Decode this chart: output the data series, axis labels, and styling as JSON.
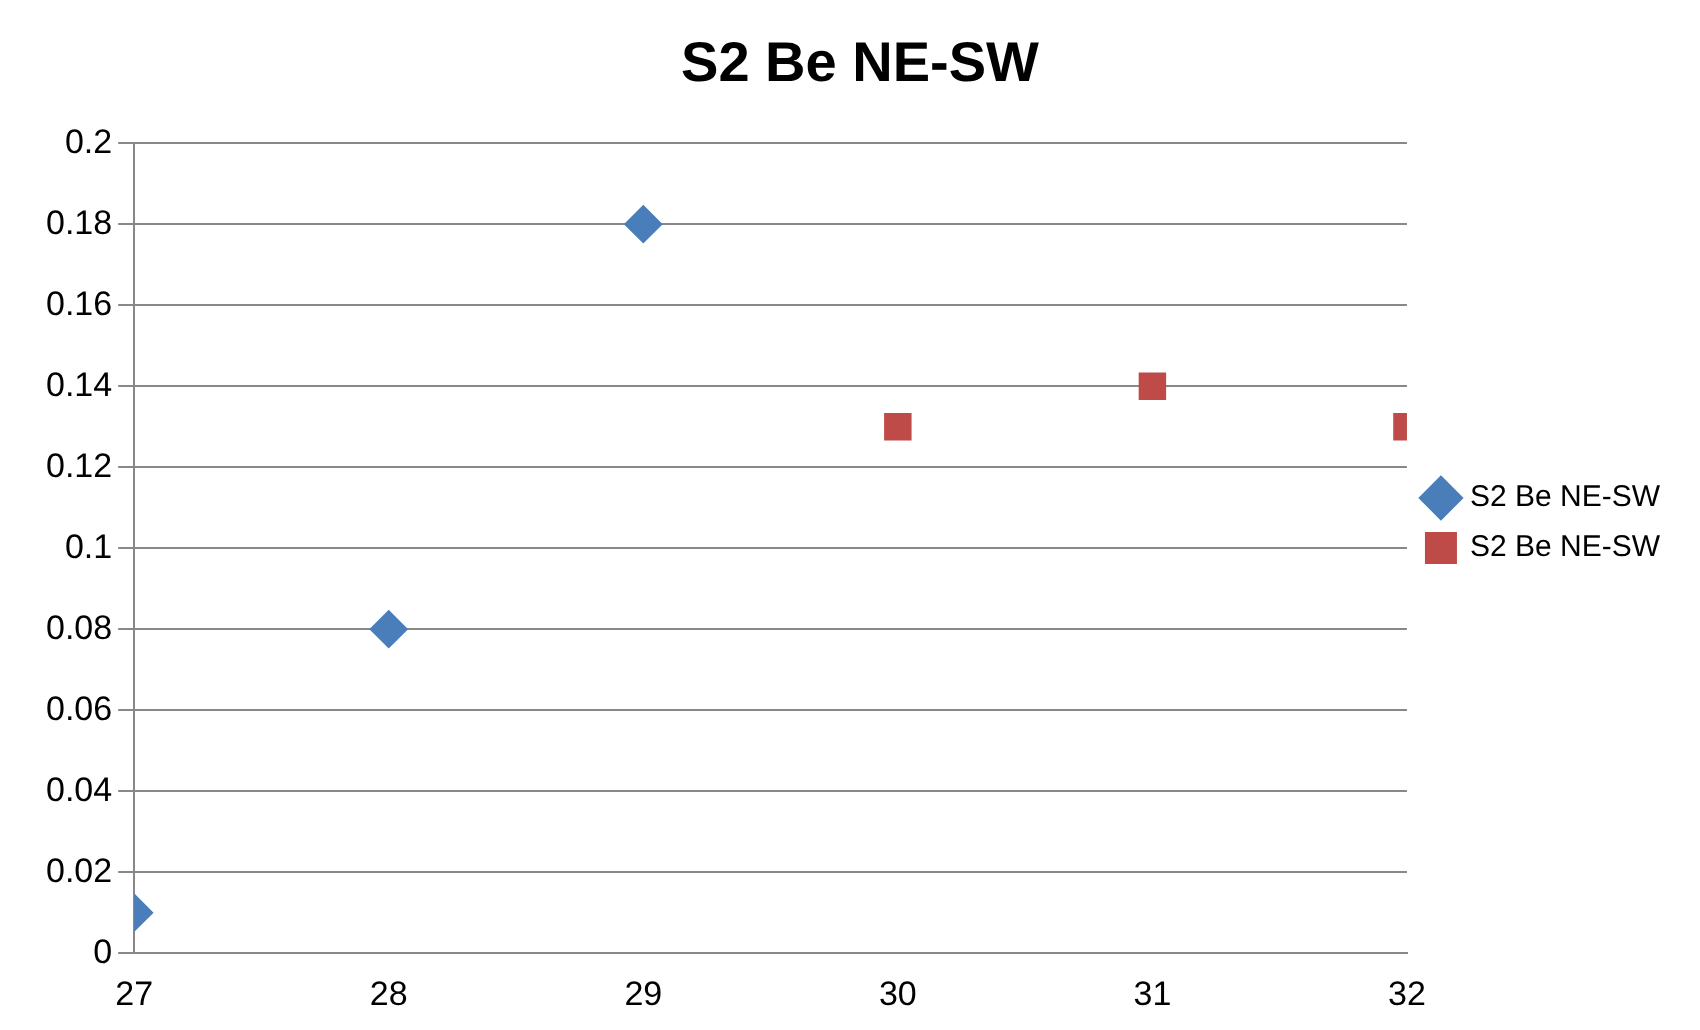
{
  "chart_data": {
    "type": "scatter",
    "title": "S2 Be NE-SW",
    "series": [
      {
        "name": "S2 Be NE-SW",
        "color": "#4a7ebb",
        "marker": "diamond",
        "x": [
          27,
          28,
          29
        ],
        "values": [
          0.01,
          0.08,
          0.18
        ]
      },
      {
        "name": "S2 Be NE-SW",
        "color": "#be4b48",
        "marker": "square",
        "x": [
          30,
          31,
          32
        ],
        "values": [
          0.13,
          0.14,
          0.13
        ]
      }
    ],
    "xlim": [
      27,
      32
    ],
    "xticks": [
      27,
      28,
      29,
      30,
      31,
      32
    ],
    "ylim": [
      0,
      0.2
    ],
    "yticks": [
      0,
      0.02,
      0.04,
      0.06,
      0.08,
      0.1,
      0.12,
      0.14,
      0.16,
      0.18,
      0.2
    ],
    "grid": "y",
    "legend": "right"
  }
}
